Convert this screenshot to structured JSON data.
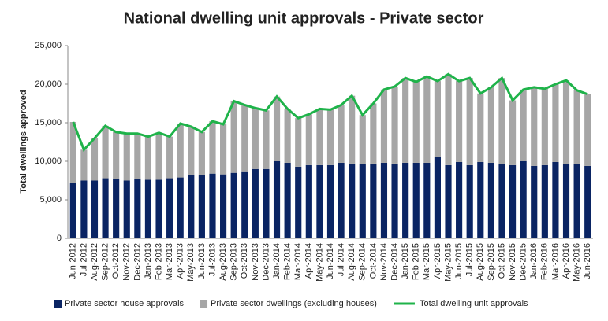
{
  "chart_data": {
    "type": "bar",
    "title": "National dwelling unit approvals - Private sector",
    "y_label": "Total dwellings approved",
    "categories": [
      "Jun-2012",
      "Jul-2012",
      "Aug-2012",
      "Sep-2012",
      "Oct-2012",
      "Nov-2012",
      "Dec-2012",
      "Jan-2013",
      "Feb-2013",
      "Mar-2013",
      "Apr-2013",
      "May-2013",
      "Jun-2013",
      "Jul-2013",
      "Aug-2013",
      "Sep-2013",
      "Oct-2013",
      "Nov-2013",
      "Dec-2013",
      "Jan-2014",
      "Feb-2014",
      "Mar-2014",
      "Apr-2014",
      "May-2014",
      "Jun-2014",
      "Jul-2014",
      "Aug-2014",
      "Sep-2014",
      "Oct-2014",
      "Nov-2014",
      "Dec-2014",
      "Jan-2015",
      "Feb-2015",
      "Mar-2015",
      "Apr-2015",
      "May-2015",
      "Jun-2015",
      "Jul-2015",
      "Aug-2015",
      "Sep-2015",
      "Oct-2015",
      "Nov-2015",
      "Dec-2015",
      "Jan-2016",
      "Feb-2016",
      "Mar-2016",
      "Apr-2016",
      "May-2016",
      "Jun-2016"
    ],
    "series": [
      {
        "name": "Private sector house approvals",
        "type": "bar",
        "color": "#0a2463",
        "values": [
          7200,
          7500,
          7500,
          7800,
          7700,
          7500,
          7700,
          7600,
          7600,
          7800,
          7900,
          8200,
          8200,
          8400,
          8300,
          8500,
          8700,
          9000,
          9000,
          10000,
          9800,
          9300,
          9500,
          9500,
          9500,
          9800,
          9700,
          9600,
          9700,
          9800,
          9700,
          9800,
          9800,
          9800,
          10600,
          9500,
          9900,
          9500,
          9900,
          9800,
          9600,
          9500,
          10000,
          9400,
          9500,
          9900,
          9600,
          9600,
          9400
        ]
      },
      {
        "name": "Private sector dwellings (excluding houses)",
        "type": "bar",
        "color": "#a6a6a6",
        "values": [
          7900,
          4000,
          5500,
          6800,
          6100,
          6100,
          5900,
          5600,
          6100,
          5400,
          7000,
          6300,
          5600,
          6800,
          6500,
          9300,
          8600,
          7900,
          7600,
          8400,
          7000,
          6300,
          6600,
          7300,
          7200,
          7500,
          8800,
          6400,
          7800,
          9500,
          10000,
          11000,
          10500,
          11200,
          9800,
          11800,
          10500,
          11300,
          8900,
          9800,
          11200,
          8400,
          9300,
          10200,
          9900,
          10100,
          10900,
          9600,
          9300
        ]
      },
      {
        "name": "Total dwelling unit approvals",
        "type": "line",
        "color": "#1fb34a",
        "values": [
          15100,
          11500,
          13000,
          14600,
          13800,
          13600,
          13600,
          13200,
          13700,
          13200,
          14900,
          14500,
          13800,
          15200,
          14800,
          17800,
          17300,
          16900,
          16600,
          18400,
          16800,
          15600,
          16100,
          16800,
          16700,
          17300,
          18500,
          16000,
          17500,
          19300,
          19700,
          20800,
          20300,
          21000,
          20400,
          21300,
          20400,
          20800,
          18800,
          19600,
          20800,
          17900,
          19300,
          19600,
          19400,
          20000,
          20500,
          19200,
          18700
        ]
      }
    ],
    "ylim": [
      0,
      25000
    ],
    "yticks": [
      0,
      {
        "value": 5000,
        "label": "5,000"
      },
      {
        "value": 10000,
        "label": "10,000"
      },
      {
        "value": 15000,
        "label": "15,000"
      },
      {
        "value": 20000,
        "label": "20,000"
      },
      {
        "value": 25000,
        "label": "25,000"
      }
    ],
    "grid": false,
    "legend": "bottom"
  }
}
